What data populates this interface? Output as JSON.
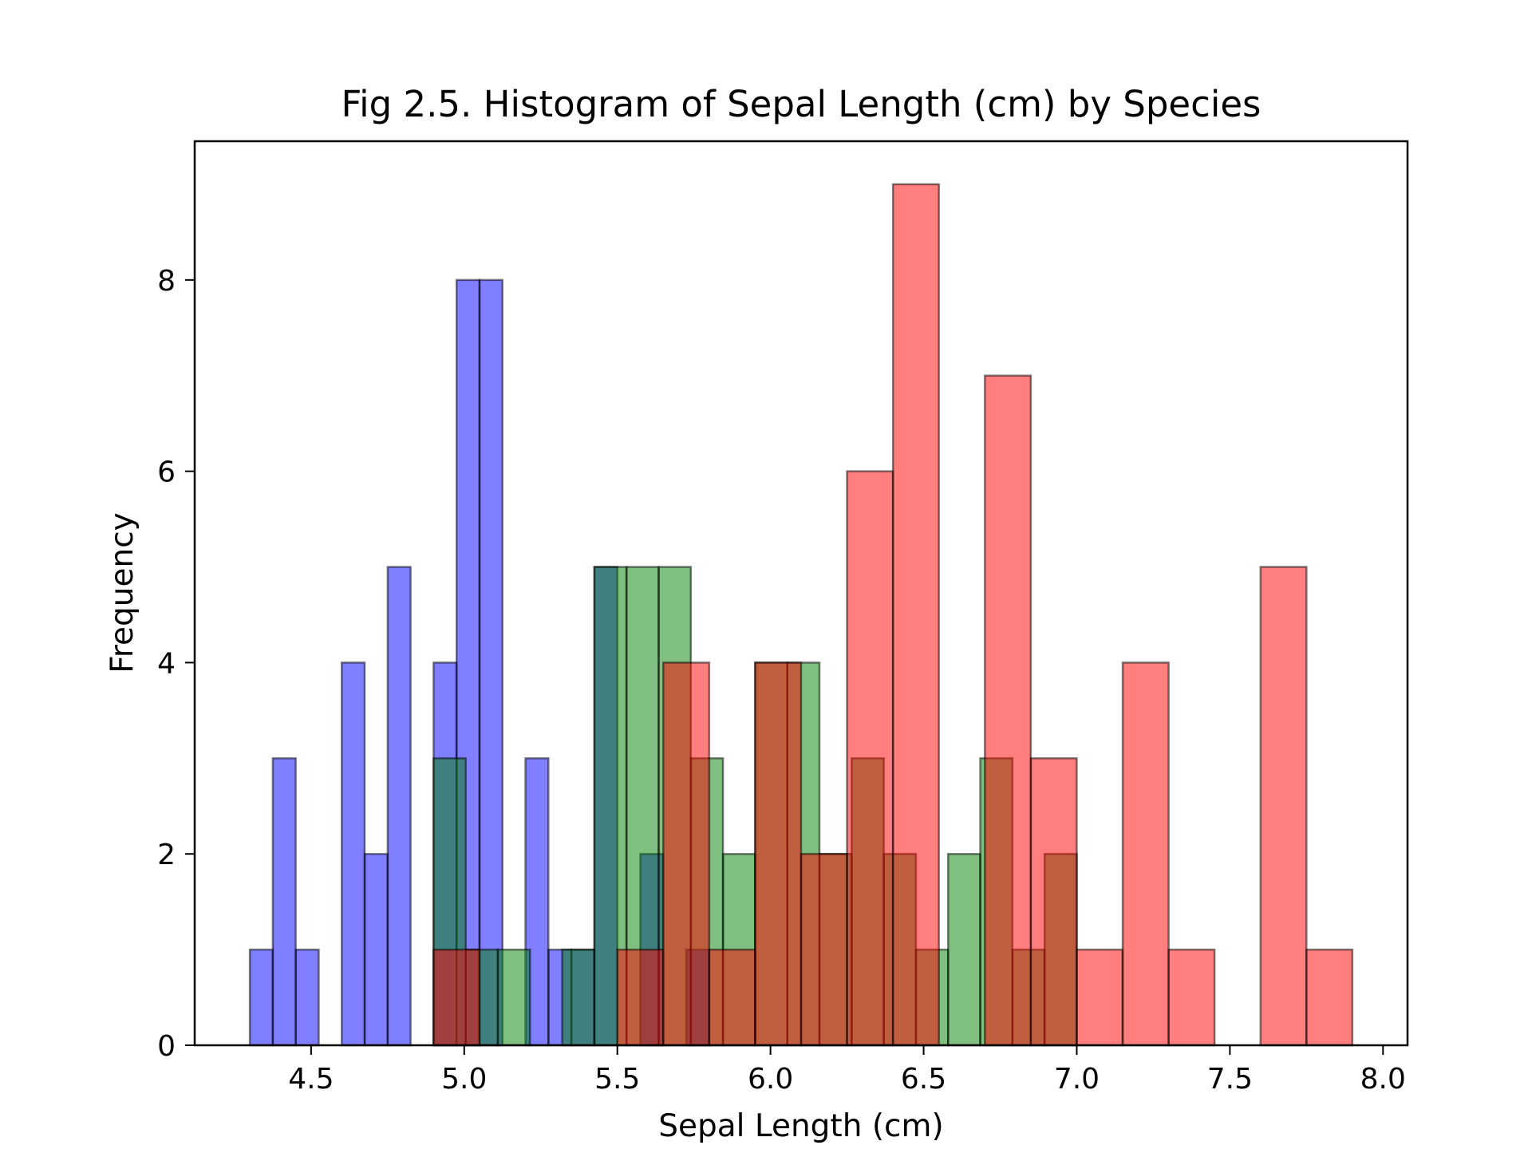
{
  "chart_data": {
    "type": "bar",
    "subtype": "overlaid-histogram",
    "title": "Fig 2.5. Histogram of Sepal Length (cm) by Species",
    "xlabel": "Sepal Length (cm)",
    "ylabel": "Frequency",
    "xlim": [
      4.12,
      8.08
    ],
    "ylim": [
      0,
      9.45
    ],
    "xticks": [
      4.5,
      5.0,
      5.5,
      6.0,
      6.5,
      7.0,
      7.5,
      8.0
    ],
    "xtick_labels": [
      "4.5",
      "5.0",
      "5.5",
      "6.0",
      "6.5",
      "7.0",
      "7.5",
      "8.0"
    ],
    "yticks": [
      0,
      2,
      4,
      6,
      8
    ],
    "ytick_labels": [
      "0",
      "2",
      "4",
      "6",
      "8"
    ],
    "grid": false,
    "series": [
      {
        "color": "#0000ff",
        "alpha": 0.5,
        "bin_edges": [
          4.3,
          4.375,
          4.45,
          4.525,
          4.6,
          4.675,
          4.75,
          4.825,
          4.9,
          4.975,
          5.05,
          5.125,
          5.2,
          5.275,
          5.35,
          5.425,
          5.5,
          5.575,
          5.65,
          5.725,
          5.8
        ],
        "counts": [
          1,
          3,
          1,
          0,
          4,
          2,
          5,
          0,
          4,
          8,
          8,
          0,
          3,
          1,
          1,
          5,
          0,
          2,
          0,
          1
        ]
      },
      {
        "color": "#008000",
        "alpha": 0.5,
        "bin_edges": [
          4.9,
          5.005,
          5.11,
          5.215,
          5.32,
          5.425,
          5.53,
          5.635,
          5.74,
          5.845,
          5.95,
          6.055,
          6.16,
          6.265,
          6.37,
          6.475,
          6.58,
          6.685,
          6.79,
          6.895,
          7.0
        ],
        "counts": [
          3,
          1,
          1,
          0,
          1,
          5,
          5,
          5,
          3,
          2,
          4,
          4,
          2,
          3,
          2,
          1,
          2,
          3,
          1,
          2
        ]
      },
      {
        "color": "#ff0000",
        "alpha": 0.5,
        "bin_edges": [
          4.9,
          5.05,
          5.2,
          5.35,
          5.5,
          5.65,
          5.8,
          5.95,
          6.1,
          6.25,
          6.4,
          6.55,
          6.7,
          6.85,
          7.0,
          7.15,
          7.3,
          7.45,
          7.6,
          7.75,
          7.9
        ],
        "counts": [
          1,
          0,
          0,
          0,
          1,
          4,
          1,
          4,
          2,
          6,
          9,
          0,
          7,
          3,
          1,
          4,
          1,
          0,
          5,
          1
        ]
      }
    ]
  }
}
